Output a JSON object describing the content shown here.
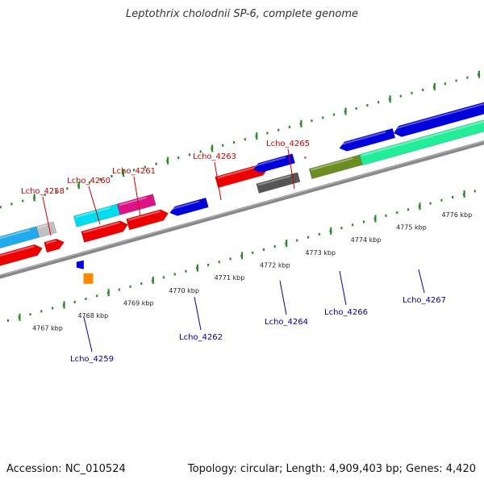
{
  "title": "Leptothrix cholodnii SP-6, complete genome",
  "footer": {
    "accession": "Accession: NC_010524",
    "summary": "Topology: circular; Length: 4,909,403 bp; Genes: 4,420"
  },
  "colors": {
    "forward_label": "#cc0000",
    "reverse_label": "#0000aa",
    "ticks": "#2a8a2a",
    "backbone": "#888888",
    "tick_label": "#222222"
  },
  "scale_ticks": [
    {
      "label": "4767 kbp",
      "kbp": 4767
    },
    {
      "label": "4768 kbp",
      "kbp": 4768
    },
    {
      "label": "4769 kbp",
      "kbp": 4769
    },
    {
      "label": "4770 kbp",
      "kbp": 4770
    },
    {
      "label": "4771 kbp",
      "kbp": 4771
    },
    {
      "label": "4772 kbp",
      "kbp": 4772
    },
    {
      "label": "4773 kbp",
      "kbp": 4773
    },
    {
      "label": "4774 kbp",
      "kbp": 4774
    },
    {
      "label": "4775 kbp",
      "kbp": 4775
    },
    {
      "label": "4776 kbp",
      "kbp": 4776
    }
  ],
  "gene_labels": [
    {
      "text": "Lcho_4258",
      "strand": "forward"
    },
    {
      "text": "Lcho_4259",
      "strand": "reverse"
    },
    {
      "text": "Lcho_4260",
      "strand": "forward"
    },
    {
      "text": "Lcho_4261",
      "strand": "forward"
    },
    {
      "text": "Lcho_4262",
      "strand": "reverse"
    },
    {
      "text": "Lcho_4263",
      "strand": "forward"
    },
    {
      "text": "Lcho_4264",
      "strand": "reverse"
    },
    {
      "text": "Lcho_4265",
      "strand": "forward"
    },
    {
      "text": "Lcho_4266",
      "strand": "reverse"
    },
    {
      "text": "Lcho_4267",
      "strand": "reverse"
    }
  ],
  "features": [
    {
      "name": "forward-gene-red",
      "color": "#ee0000"
    },
    {
      "name": "reverse-gene-blue",
      "color": "#0000dd"
    },
    {
      "name": "feature-cyan",
      "color": "#00ddee"
    },
    {
      "name": "feature-magenta",
      "color": "#dd1188"
    },
    {
      "name": "feature-gray",
      "color": "#c0c0c0"
    },
    {
      "name": "feature-dark-gray",
      "color": "#555555"
    },
    {
      "name": "feature-olive",
      "color": "#6b8e23"
    },
    {
      "name": "feature-sea-green",
      "color": "#22ee99"
    },
    {
      "name": "feature-orange",
      "color": "#ff8800"
    },
    {
      "name": "feature-sky-blue",
      "color": "#22aaee"
    }
  ]
}
